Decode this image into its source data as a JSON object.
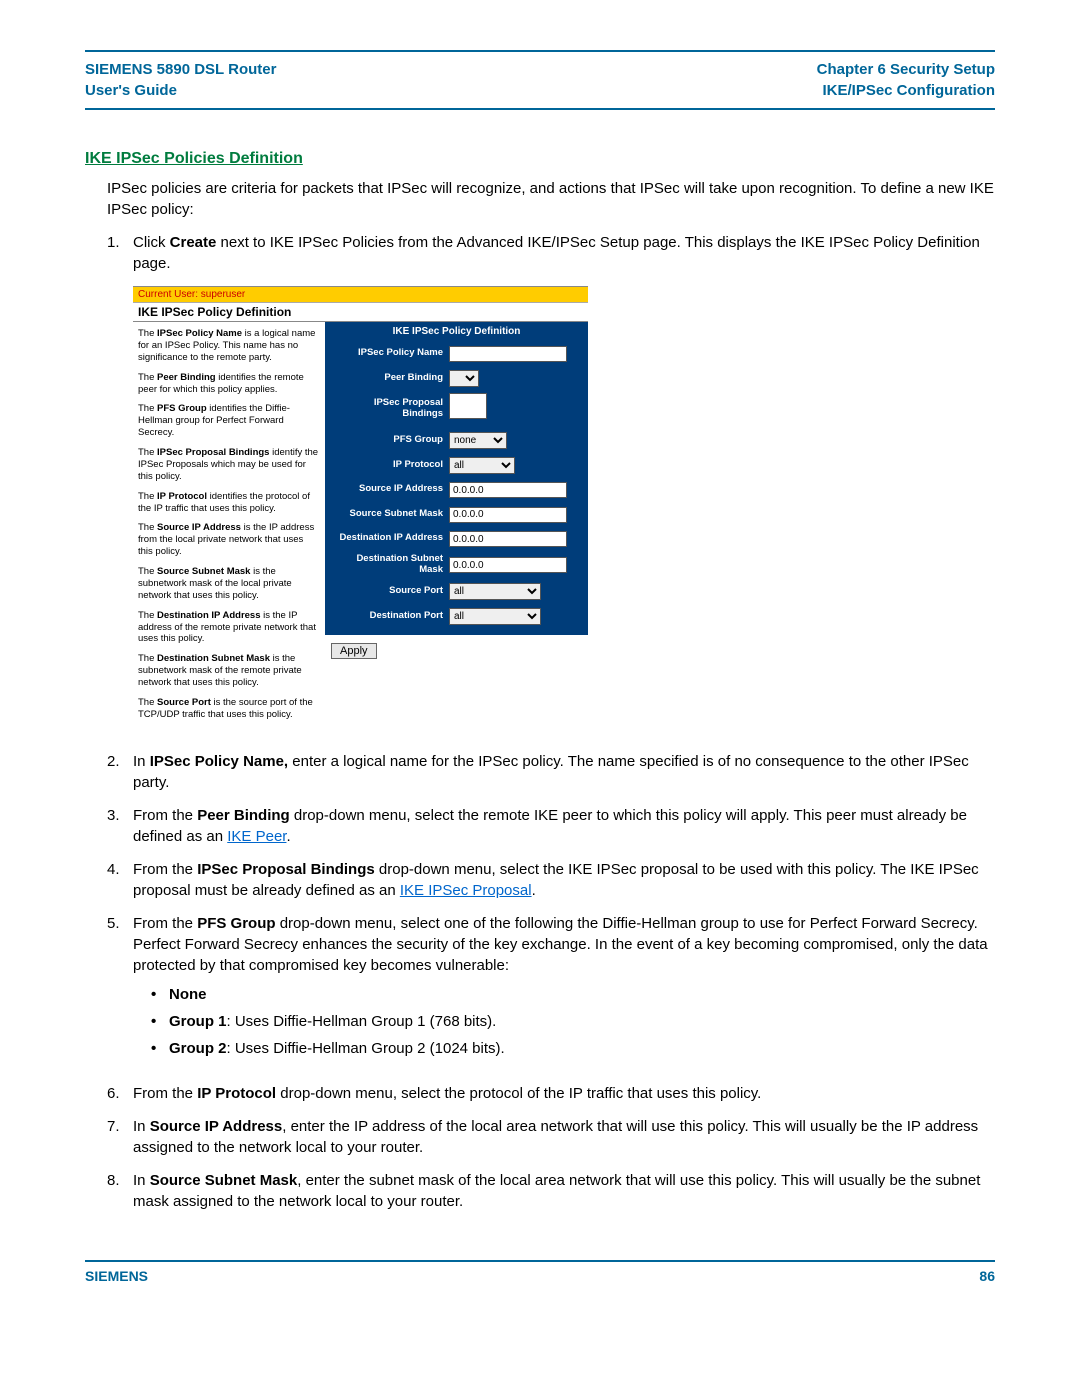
{
  "header": {
    "left_line1": "SIEMENS 5890 DSL Router",
    "left_line2": "User's Guide",
    "right_line1": "Chapter 6  Security Setup",
    "right_line2": "IKE/IPSec Configuration"
  },
  "section_title": "IKE IPSec Policies Definition",
  "intro": "IPSec policies are criteria for packets that IPSec will recognize, and actions that IPSec will take upon recognition. To define a new IKE IPSec policy:",
  "steps": {
    "s1_num": "1.",
    "s1_a": "Click ",
    "s1_b": "Create",
    "s1_c": " next to IKE IPSec Policies from the Advanced IKE/IPSec Setup page. This displays the IKE IPSec Policy Definition page.",
    "s2_num": "2.",
    "s2_a": "In ",
    "s2_b": "IPSec Policy Name,",
    "s2_c": " enter a logical name for the IPSec policy. The name specified is of no consequence to the other IPSec party.",
    "s3_num": "3.",
    "s3_a": "From the ",
    "s3_b": "Peer Binding",
    "s3_c": " drop-down menu, select the remote IKE peer to which this policy will apply. This peer must already be defined as an ",
    "s3_link": "IKE Peer",
    "s3_d": ".",
    "s4_num": "4.",
    "s4_a": "From the ",
    "s4_b": "IPSec Proposal Bindings",
    "s4_c": " drop-down menu, select the IKE IPSec proposal to be used with this policy. The IKE IPSec proposal must be already defined as an ",
    "s4_link": "IKE IPSec Proposal",
    "s4_d": ".",
    "s5_num": "5.",
    "s5_a": "From the ",
    "s5_b": "PFS Group",
    "s5_c": " drop-down menu, select one of the following the Diffie-Hellman group to use for Perfect Forward Secrecy. Perfect Forward Secrecy enhances the security of the key exchange. In the event of a key becoming compromised, only the data protected by that compromised key becomes vulnerable:",
    "s5_bul1": "None",
    "s5_bul2a": "Group 1",
    "s5_bul2b": ": Uses Diffie-Hellman Group 1 (768 bits).",
    "s5_bul3a": "Group 2",
    "s5_bul3b": ": Uses Diffie-Hellman Group 2 (1024 bits).",
    "s6_num": "6.",
    "s6_a": "From the ",
    "s6_b": "IP Protocol",
    "s6_c": " drop-down menu, select the protocol of the IP traffic that uses this policy.",
    "s7_num": "7.",
    "s7_a": "In ",
    "s7_b": "Source IP Address",
    "s7_c": ", enter the IP address of the local area network that will use this policy. This will usually be the IP address assigned to the network local to your router.",
    "s8_num": "8.",
    "s8_a": "In ",
    "s8_b": "Source Subnet Mask",
    "s8_c": ", enter the subnet mask of the local area network that will use this policy. This will usually be the subnet mask assigned to the network local to your router."
  },
  "screenshot": {
    "userbar": "Current User: superuser",
    "title": "IKE IPSec Policy Definition",
    "left_paras": {
      "p1a": "The ",
      "p1b": "IPSec Policy Name",
      "p1c": " is a logical name for an IPSec Policy. This name has no significance to the remote party.",
      "p2a": "The ",
      "p2b": "Peer Binding",
      "p2c": " identifies the remote peer for which this policy applies.",
      "p3a": "The ",
      "p3b": "PFS Group",
      "p3c": " identifies the Diffie-Hellman group for Perfect Forward Secrecy.",
      "p4a": "The ",
      "p4b": "IPSec Proposal Bindings",
      "p4c": " identify the IPSec Proposals which may be used for this policy.",
      "p5a": "The ",
      "p5b": "IP Protocol",
      "p5c": " identifies the protocol of the IP traffic that uses this policy.",
      "p6a": "The ",
      "p6b": "Source IP Address",
      "p6c": " is the IP address from the local private network that uses this policy.",
      "p7a": "The ",
      "p7b": "Source Subnet Mask",
      "p7c": " is the subnetwork mask of the local private network that uses this policy.",
      "p8a": "The ",
      "p8b": "Destination IP Address",
      "p8c": " is the IP address of the remote private network that uses this policy.",
      "p9a": "The ",
      "p9b": "Destination Subnet Mask",
      "p9c": " is the subnetwork mask of the remote private network that uses this policy.",
      "p10a": "The ",
      "p10b": "Source Port",
      "p10c": " is the source port of the TCP/UDP traffic that uses this policy."
    },
    "form": {
      "panel_title": "IKE IPSec Policy Definition",
      "l_name": "IPSec Policy Name",
      "l_peer": "Peer Binding",
      "l_prop": "IPSec Proposal Bindings",
      "l_pfs": "PFS Group",
      "v_pfs": "none",
      "l_ipproto": "IP Protocol",
      "v_ipproto": "all",
      "l_srcip": "Source IP Address",
      "v_srcip": "0.0.0.0",
      "l_srcmask": "Source Subnet Mask",
      "v_srcmask": "0.0.0.0",
      "l_dstip": "Destination IP Address",
      "v_dstip": "0.0.0.0",
      "l_dstmask": "Destination Subnet Mask",
      "v_dstmask": "0.0.0.0",
      "l_srcport": "Source Port",
      "v_srcport": "all",
      "l_dstport": "Destination Port",
      "v_dstport": "all",
      "apply": "Apply"
    }
  },
  "footer": {
    "brand": "SIEMENS",
    "page": "86"
  },
  "colors": {
    "rule": "#006699",
    "header_text": "#006699",
    "section_title": "#007c3e",
    "link": "#0066cc",
    "userbar_bg": "#ffcc00",
    "userbar_text": "#cc0000",
    "panel_bg": "#003d7a"
  }
}
